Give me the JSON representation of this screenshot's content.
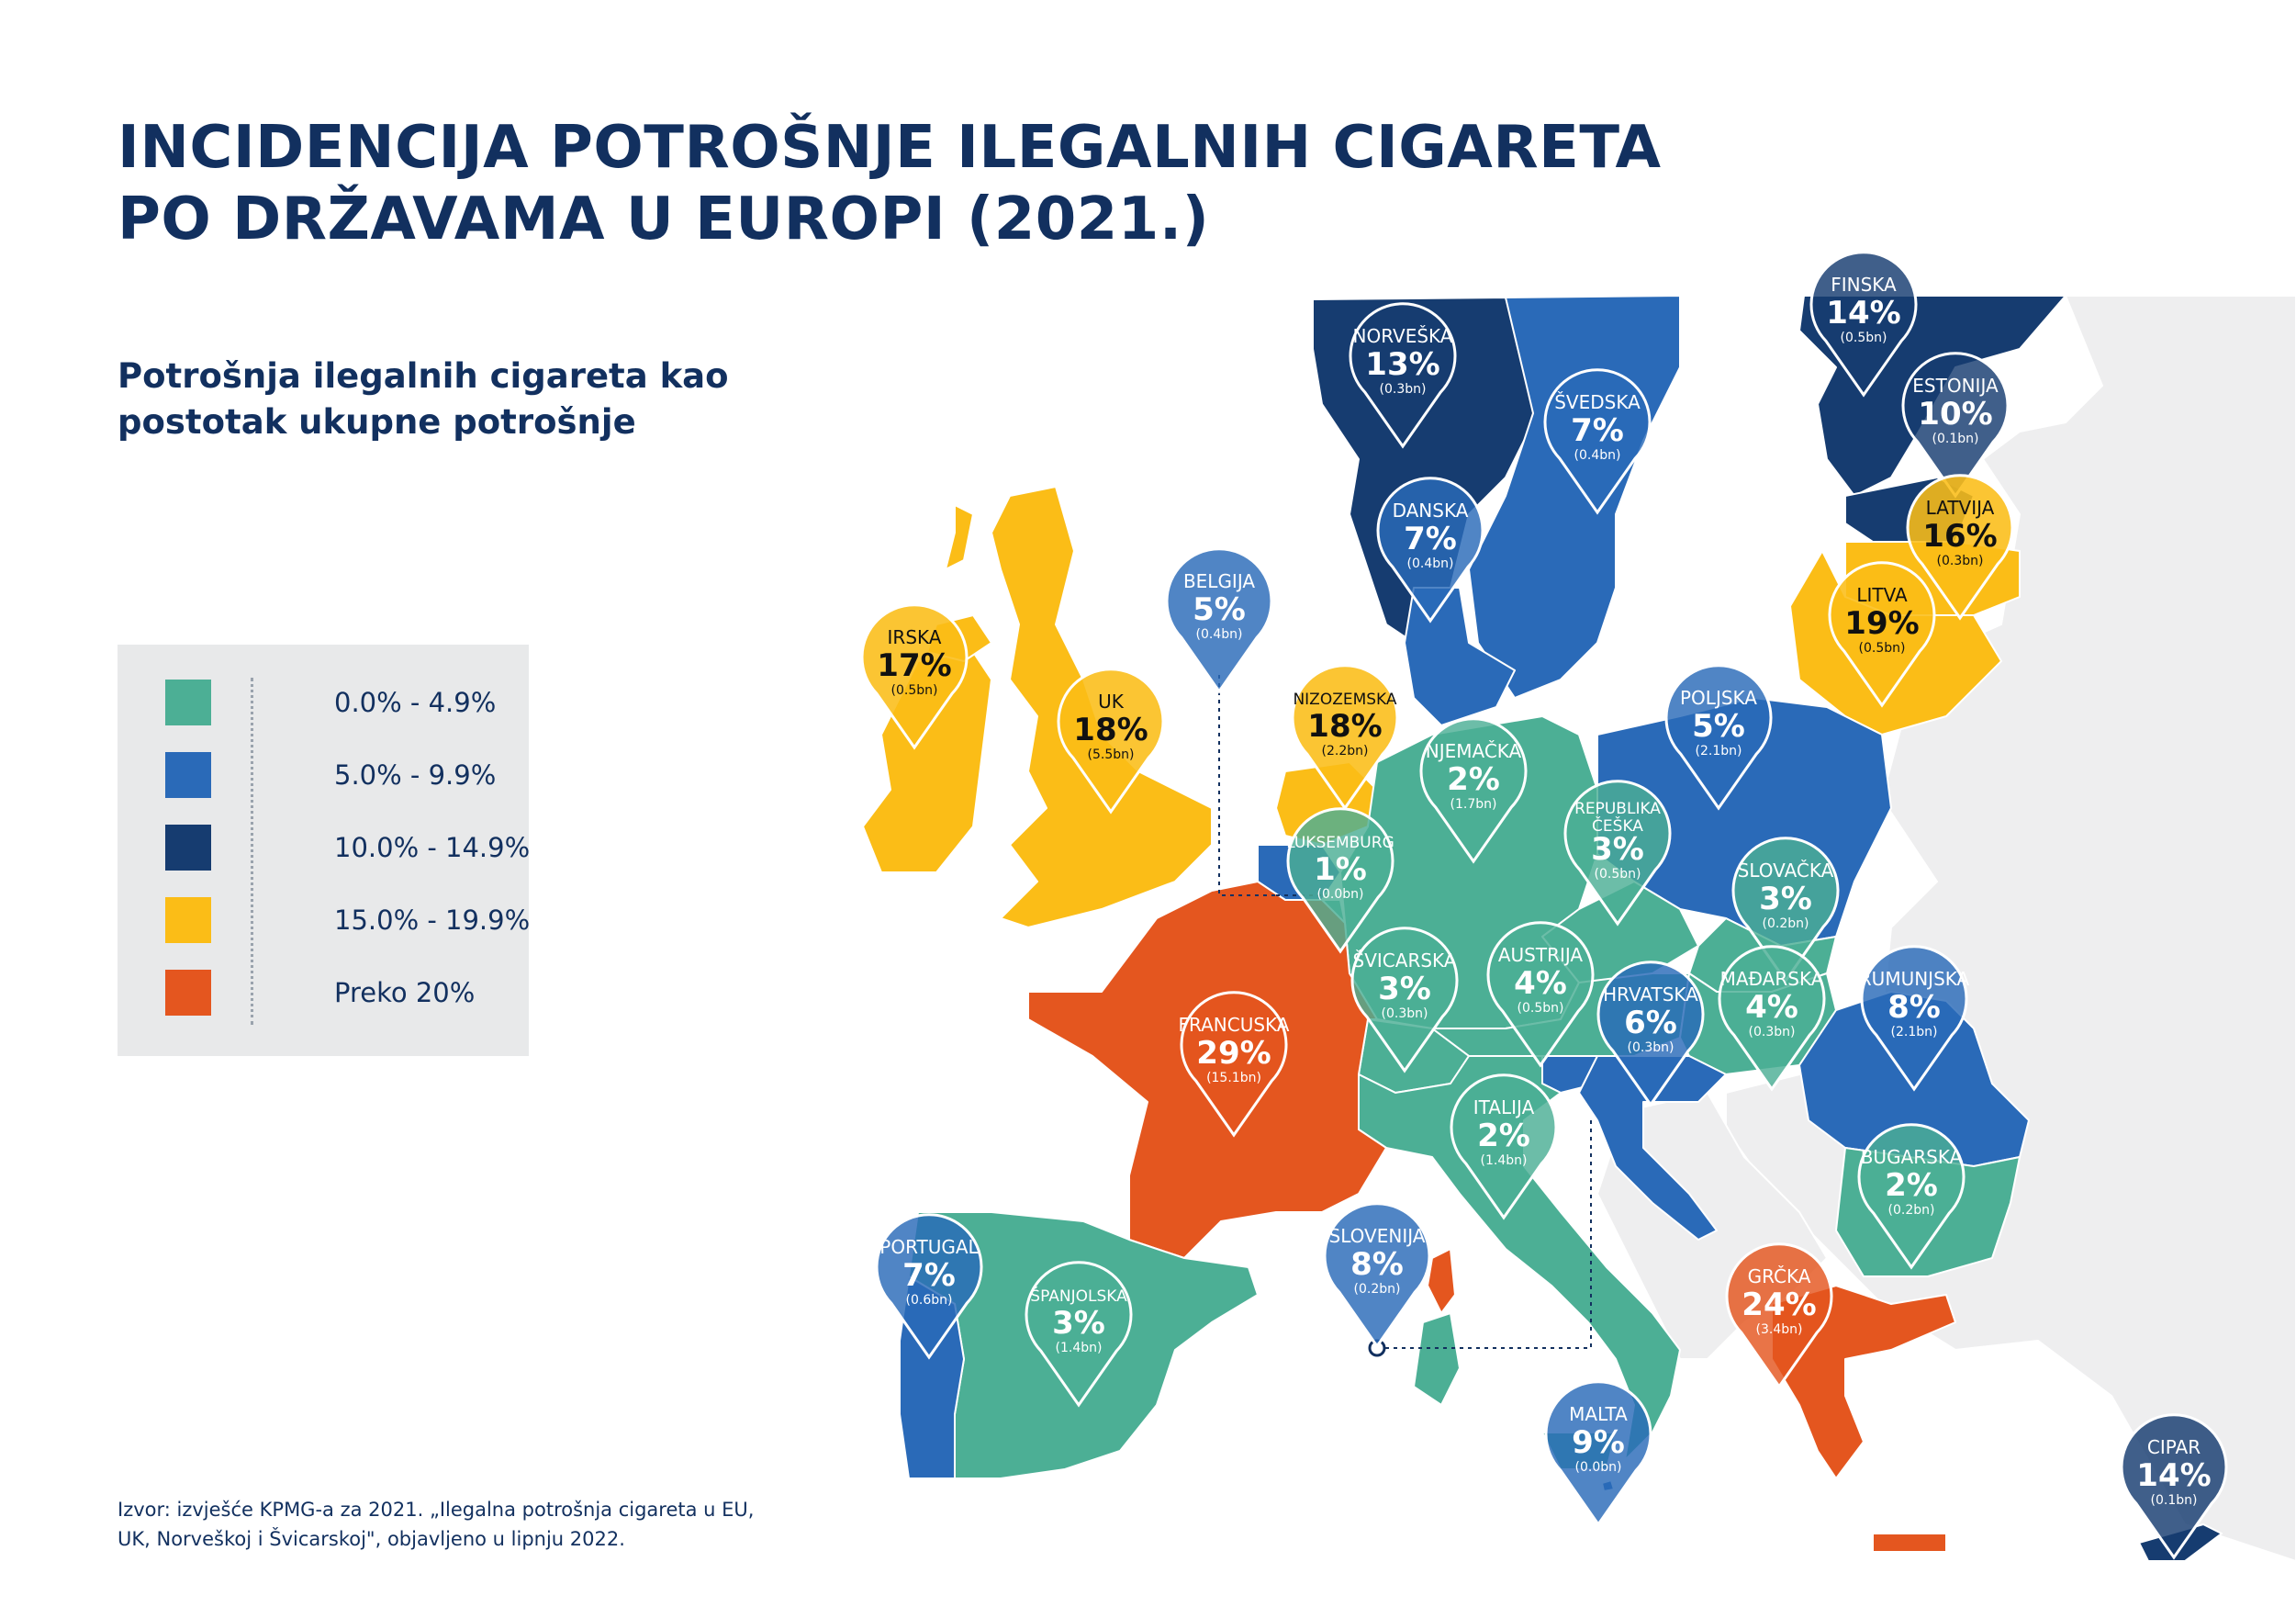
{
  "title": {
    "line1": "INCIDENCIJA POTROŠNJE ILEGALNIH CIGARETA",
    "line2": "PO DRŽAVAMA U EUROPI (2021.)"
  },
  "subtitle": {
    "line1": "Potrošnja ilegalnih cigareta kao",
    "line2": "postotak ukupne potrošnje"
  },
  "colors": {
    "band_0": "#4caf95",
    "band_1": "#2a6ab8",
    "band_2": "#163c70",
    "band_3": "#fbbd17",
    "band_4": "#e4561f",
    "other_land": "#eeeeef"
  },
  "legend": [
    {
      "label": "0.0% - 4.9%",
      "color": "#4caf95"
    },
    {
      "label": "5.0% - 9.9%",
      "color": "#2a6ab8"
    },
    {
      "label": "10.0% - 14.9%",
      "color": "#163c70"
    },
    {
      "label": "15.0% - 19.9%",
      "color": "#fbbd17"
    },
    {
      "label": "Preko 20%",
      "color": "#e4561f"
    }
  ],
  "countries": [
    {
      "name": "NORVEŠKA",
      "pct": "13%",
      "vol": "(0.3bn)",
      "band": 2
    },
    {
      "name": "FINSKA",
      "pct": "14%",
      "vol": "(0.5bn)",
      "band": 2
    },
    {
      "name": "ŠVEDSKA",
      "pct": "7%",
      "vol": "(0.4bn)",
      "band": 1
    },
    {
      "name": "ESTONIJA",
      "pct": "10%",
      "vol": "(0.1bn)",
      "band": 2
    },
    {
      "name": "LATVIJA",
      "pct": "16%",
      "vol": "(0.3bn)",
      "band": 3
    },
    {
      "name": "DANSKA",
      "pct": "7%",
      "vol": "(0.4bn)",
      "band": 1
    },
    {
      "name": "LITVA",
      "pct": "19%",
      "vol": "(0.5bn)",
      "band": 3
    },
    {
      "name": "BELGIJA",
      "pct": "5%",
      "vol": "(0.4bn)",
      "band": 1
    },
    {
      "name": "IRSKA",
      "pct": "17%",
      "vol": "(0.5bn)",
      "band": 3
    },
    {
      "name": "UK",
      "pct": "18%",
      "vol": "(5.5bn)",
      "band": 3
    },
    {
      "name": "NIZOZEMSKA",
      "pct": "18%",
      "vol": "(2.2bn)",
      "band": 3
    },
    {
      "name": "POLJSKA",
      "pct": "5%",
      "vol": "(2.1bn)",
      "band": 1
    },
    {
      "name": "NJEMAČKA",
      "pct": "2%",
      "vol": "(1.7bn)",
      "band": 0
    },
    {
      "name": "REPUBLIKA",
      "name2": "ČEŠKA",
      "pct": "3%",
      "vol": "(0.5bn)",
      "band": 0
    },
    {
      "name": "LUKSEMBURG",
      "pct": "1%",
      "vol": "(0.0bn)",
      "band": 0
    },
    {
      "name": "SLOVAČKA",
      "pct": "3%",
      "vol": "(0.2bn)",
      "band": 0
    },
    {
      "name": "AUSTRIJA",
      "pct": "4%",
      "vol": "(0.5bn)",
      "band": 0
    },
    {
      "name": "ŠVICARSKA",
      "pct": "3%",
      "vol": "(0.3bn)",
      "band": 0
    },
    {
      "name": "MAĐARSKA",
      "pct": "4%",
      "vol": "(0.3bn)",
      "band": 0
    },
    {
      "name": "RUMUNJSKA",
      "pct": "8%",
      "vol": "(2.1bn)",
      "band": 1
    },
    {
      "name": "FRANCUSKA",
      "pct": "29%",
      "vol": "(15.1bn)",
      "band": 4
    },
    {
      "name": "HRVATSKA",
      "pct": "6%",
      "vol": "(0.3bn)",
      "band": 1
    },
    {
      "name": "ITALIJA",
      "pct": "2%",
      "vol": "(1.4bn)",
      "band": 0
    },
    {
      "name": "BUGARSKA",
      "pct": "2%",
      "vol": "(0.2bn)",
      "band": 0
    },
    {
      "name": "SLOVENIJA",
      "pct": "8%",
      "vol": "(0.2bn)",
      "band": 1
    },
    {
      "name": "PORTUGAL",
      "pct": "7%",
      "vol": "(0.6bn)",
      "band": 1
    },
    {
      "name": "ŠPANJOLSKA",
      "pct": "3%",
      "vol": "(1.4bn)",
      "band": 0
    },
    {
      "name": "GRČKA",
      "pct": "24%",
      "vol": "(3.4bn)",
      "band": 4
    },
    {
      "name": "MALTA",
      "pct": "9%",
      "vol": "(0.0bn)",
      "band": 1
    },
    {
      "name": "CIPAR",
      "pct": "14%",
      "vol": "(0.1bn)",
      "band": 2
    }
  ],
  "source": {
    "line1": "Izvor: izvješće KPMG-a za 2021. „Ilegalna potrošnja cigareta u EU,",
    "line2": "UK, Norveškoj i Švicarskoj\", objavljeno u lipnju 2022."
  }
}
